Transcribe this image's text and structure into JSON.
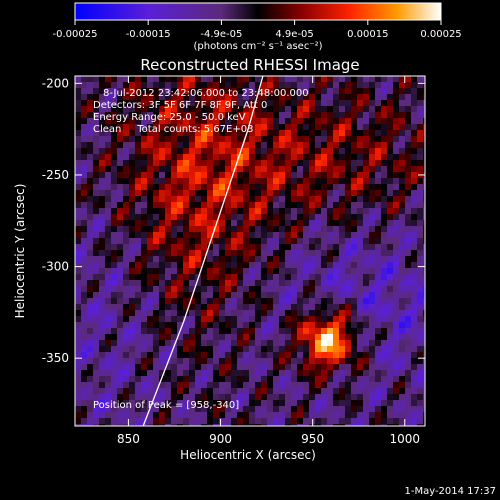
{
  "colorbar": {
    "ticks": [
      "-0.00025",
      "-0.00015",
      "-4.9e-05",
      "4.9e-05",
      "0.00015",
      "0.00025"
    ],
    "unit_label": "(photons cm⁻² s⁻¹ asec⁻²)"
  },
  "chart_data": {
    "type": "heatmap",
    "title": "Reconstructed RHESSI Image",
    "xlabel": "Heliocentric X (arcsec)",
    "ylabel": "Heliocentric Y (arcsec)",
    "xlim": [
      821,
      1011
    ],
    "ylim": [
      -387,
      -196
    ],
    "x_ticks": [
      850,
      900,
      950,
      1000
    ],
    "y_ticks": [
      -200,
      -250,
      -300,
      -350
    ],
    "colorbar_range": [
      -0.00025,
      0.00025
    ],
    "limb_curve": [
      [
        858,
        -387
      ],
      [
        880,
        -330
      ],
      [
        900,
        -270
      ],
      [
        915,
        -225
      ],
      [
        923,
        -196
      ]
    ],
    "peak": {
      "x": 958,
      "y": -340
    },
    "annotations": [
      "8-Jul-2012 23:42:06.000 to 23:48:00.000",
      "Detectors: 3F 5F 6F 7F 8F 9F, Att 0",
      "Energy Range: 25.0 - 50.0 keV",
      "Clean     Total counts: 5.67E+03",
      "Position of Peak = [958,-340]"
    ]
  },
  "footer": {
    "timestamp": "1-May-2014 17:37"
  }
}
